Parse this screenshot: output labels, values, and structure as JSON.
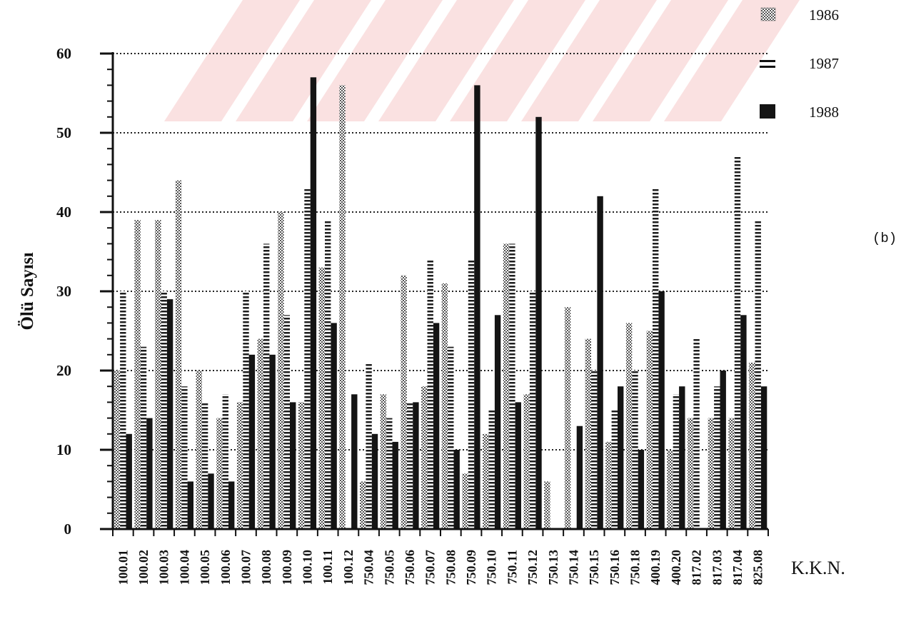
{
  "chart_data": {
    "type": "bar",
    "ylabel": "Ölü Sayısı",
    "xlabel": "K.K.N.",
    "panel_label": "(b)",
    "ylim": [
      0,
      60
    ],
    "yticks": [
      0,
      10,
      20,
      30,
      40,
      50,
      60
    ],
    "grid": true,
    "legend_position": "top-right",
    "categories": [
      "100.01",
      "100.02",
      "100.03",
      "100.04",
      "100.05",
      "100.06",
      "100.07",
      "100.08",
      "100.09",
      "100.10",
      "100.11",
      "100.12",
      "750.04",
      "750.05",
      "750.06",
      "750.07",
      "750.08",
      "750.09",
      "750.10",
      "750.11",
      "750.12",
      "750.13",
      "750.14",
      "750.15",
      "750.16",
      "750.18",
      "400.19",
      "400.20",
      "817.02",
      "817.03",
      "817.04",
      "825.08"
    ],
    "series": [
      {
        "name": "1986",
        "values": [
          20,
          39,
          39,
          44,
          20,
          14,
          16,
          24,
          40,
          16,
          33,
          56,
          6,
          17,
          32,
          18,
          31,
          7,
          12,
          36,
          17,
          6,
          28,
          24,
          11,
          26,
          25,
          10,
          14,
          14,
          14,
          21
        ]
      },
      {
        "name": "1987",
        "values": [
          30,
          23,
          30,
          18,
          16,
          17,
          30,
          36,
          27,
          43,
          39,
          0,
          21,
          14,
          16,
          34,
          23,
          34,
          15,
          36,
          30,
          0,
          0,
          20,
          15,
          20,
          43,
          17,
          24,
          18,
          47,
          39
        ]
      },
      {
        "name": "1988",
        "values": [
          12,
          14,
          29,
          6,
          7,
          6,
          22,
          22,
          16,
          57,
          26,
          17,
          12,
          11,
          16,
          26,
          10,
          56,
          27,
          16,
          52,
          0,
          13,
          42,
          18,
          10,
          30,
          18,
          0,
          20,
          27,
          18
        ]
      }
    ],
    "colors": {
      "1986": "#8a8a8a",
      "1987": "#2a2a2a",
      "1988": "#141414",
      "grid": "#222222",
      "accent_faded": "#f6c9c9"
    }
  }
}
